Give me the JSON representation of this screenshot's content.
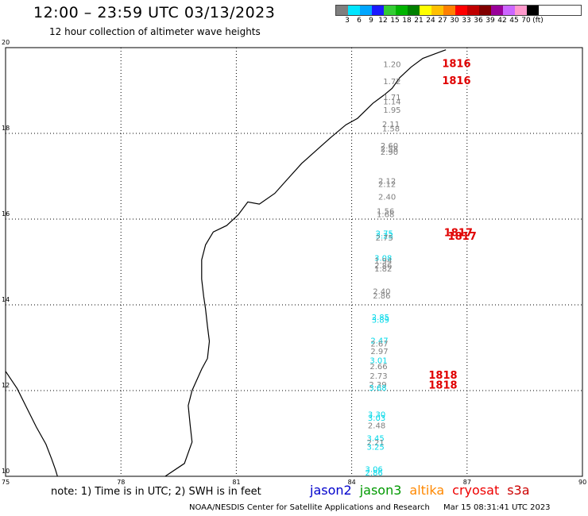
{
  "header": {
    "title": "12:00 – 23:59 UTC 03/13/2023",
    "subtitle": "12 hour collection of altimeter wave heights"
  },
  "legend": {
    "colors": [
      "#7f7f7f",
      "#00e5ff",
      "#00a6ff",
      "#1a1aff",
      "#33cc33",
      "#00b300",
      "#007f00",
      "#ffff00",
      "#ffc000",
      "#ff8000",
      "#ff0000",
      "#c00000",
      "#800000",
      "#990099",
      "#cc66ff",
      "#ff99cc",
      "#000000"
    ],
    "labels": [
      "3",
      "6",
      "9",
      "12",
      "15",
      "18",
      "21",
      "24",
      "27",
      "30",
      "33",
      "36",
      "39",
      "42",
      "45",
      "70",
      "(ft)"
    ]
  },
  "axes": {
    "x_ticks": [
      "75",
      "78",
      "81",
      "84",
      "87",
      "90"
    ],
    "y_ticks": [
      "20",
      "18",
      "16",
      "14",
      "12",
      "10"
    ]
  },
  "chart_data": {
    "type": "scatter",
    "x_label": "",
    "y_label": "",
    "xlim": [
      75,
      90
    ],
    "ylim": [
      10,
      20
    ],
    "series_colors": {
      "gray": "#7f7f7f",
      "cyan": "#00d8e8"
    },
    "wave_heights": [
      {
        "lon": 85.05,
        "lat": 19.55,
        "value": "1.20",
        "color": "gray"
      },
      {
        "lon": 85.05,
        "lat": 19.15,
        "value": "1.72",
        "color": "gray"
      },
      {
        "lon": 85.05,
        "lat": 18.78,
        "value": "1.71",
        "color": "gray"
      },
      {
        "lon": 85.05,
        "lat": 18.68,
        "value": "1.14",
        "color": "gray"
      },
      {
        "lon": 85.05,
        "lat": 18.48,
        "value": "1.95",
        "color": "gray"
      },
      {
        "lon": 85.02,
        "lat": 18.15,
        "value": "2.11",
        "color": "gray"
      },
      {
        "lon": 85.02,
        "lat": 18.05,
        "value": "1.58",
        "color": "gray"
      },
      {
        "lon": 84.98,
        "lat": 17.65,
        "value": "2.60",
        "color": "gray"
      },
      {
        "lon": 84.98,
        "lat": 17.57,
        "value": "2.58",
        "color": "gray"
      },
      {
        "lon": 84.98,
        "lat": 17.5,
        "value": "2.90",
        "color": "gray"
      },
      {
        "lon": 84.92,
        "lat": 16.82,
        "value": "2.12",
        "color": "gray"
      },
      {
        "lon": 84.92,
        "lat": 16.75,
        "value": "2.12",
        "color": "gray"
      },
      {
        "lon": 84.92,
        "lat": 16.45,
        "value": "2.40",
        "color": "gray"
      },
      {
        "lon": 84.88,
        "lat": 16.12,
        "value": "1.56",
        "color": "gray"
      },
      {
        "lon": 84.88,
        "lat": 16.05,
        "value": "1.68",
        "color": "gray"
      },
      {
        "lon": 84.85,
        "lat": 15.6,
        "value": "2.75",
        "color": "cyan"
      },
      {
        "lon": 84.85,
        "lat": 15.55,
        "value": "3.23",
        "color": "cyan"
      },
      {
        "lon": 84.85,
        "lat": 15.5,
        "value": "2.75",
        "color": "gray"
      },
      {
        "lon": 84.82,
        "lat": 15.03,
        "value": "3.08",
        "color": "cyan"
      },
      {
        "lon": 84.82,
        "lat": 14.96,
        "value": "1.94",
        "color": "gray"
      },
      {
        "lon": 84.82,
        "lat": 14.85,
        "value": "2.86",
        "color": "gray"
      },
      {
        "lon": 84.82,
        "lat": 14.78,
        "value": "1.82",
        "color": "gray"
      },
      {
        "lon": 84.78,
        "lat": 14.25,
        "value": "2.40",
        "color": "gray"
      },
      {
        "lon": 84.78,
        "lat": 14.15,
        "value": "2.86",
        "color": "gray"
      },
      {
        "lon": 84.75,
        "lat": 13.65,
        "value": "2.85",
        "color": "cyan"
      },
      {
        "lon": 84.75,
        "lat": 13.58,
        "value": "3.89",
        "color": "cyan"
      },
      {
        "lon": 84.72,
        "lat": 13.1,
        "value": "2.47",
        "color": "cyan"
      },
      {
        "lon": 84.72,
        "lat": 13.03,
        "value": "2.67",
        "color": "gray"
      },
      {
        "lon": 84.72,
        "lat": 12.85,
        "value": "2.97",
        "color": "gray"
      },
      {
        "lon": 84.7,
        "lat": 12.64,
        "value": "3.01",
        "color": "cyan"
      },
      {
        "lon": 84.7,
        "lat": 12.5,
        "value": "2.66",
        "color": "gray"
      },
      {
        "lon": 84.7,
        "lat": 12.28,
        "value": "2.73",
        "color": "gray"
      },
      {
        "lon": 84.68,
        "lat": 12.07,
        "value": "2.39",
        "color": "gray"
      },
      {
        "lon": 84.68,
        "lat": 12.0,
        "value": "3.68",
        "color": "cyan"
      },
      {
        "lon": 84.65,
        "lat": 11.38,
        "value": "3.30",
        "color": "cyan"
      },
      {
        "lon": 84.65,
        "lat": 11.3,
        "value": "3.03",
        "color": "cyan"
      },
      {
        "lon": 84.65,
        "lat": 11.12,
        "value": "2.48",
        "color": "gray"
      },
      {
        "lon": 84.62,
        "lat": 10.82,
        "value": "3.45",
        "color": "cyan"
      },
      {
        "lon": 84.62,
        "lat": 10.72,
        "value": "2.21",
        "color": "gray"
      },
      {
        "lon": 84.62,
        "lat": 10.62,
        "value": "3.25",
        "color": "cyan"
      },
      {
        "lon": 84.58,
        "lat": 10.1,
        "value": "3.06",
        "color": "cyan"
      },
      {
        "lon": 84.58,
        "lat": 10.02,
        "value": "2.86",
        "color": "cyan"
      }
    ],
    "pass_times": [
      {
        "lon": 86.35,
        "lat": 19.55,
        "value": "1816"
      },
      {
        "lon": 86.35,
        "lat": 19.15,
        "value": "1816"
      },
      {
        "lon": 86.4,
        "lat": 15.6,
        "value": "1817"
      },
      {
        "lon": 86.5,
        "lat": 15.52,
        "value": "1817"
      },
      {
        "lon": 86.0,
        "lat": 12.28,
        "value": "1818"
      },
      {
        "lon": 86.0,
        "lat": 12.05,
        "value": "1818"
      }
    ],
    "coastline_lonlat": [
      [
        86.45,
        19.95
      ],
      [
        86.15,
        19.85
      ],
      [
        85.85,
        19.75
      ],
      [
        85.55,
        19.55
      ],
      [
        85.25,
        19.3
      ],
      [
        85.05,
        19.05
      ],
      [
        84.85,
        18.9
      ],
      [
        84.55,
        18.7
      ],
      [
        84.15,
        18.35
      ],
      [
        83.85,
        18.2
      ],
      [
        83.45,
        17.9
      ],
      [
        83.2,
        17.7
      ],
      [
        82.7,
        17.3
      ],
      [
        82.3,
        16.9
      ],
      [
        82.0,
        16.6
      ],
      [
        81.6,
        16.35
      ],
      [
        81.3,
        16.4
      ],
      [
        81.05,
        16.1
      ],
      [
        80.75,
        15.85
      ],
      [
        80.4,
        15.7
      ],
      [
        80.2,
        15.4
      ],
      [
        80.1,
        15.05
      ],
      [
        80.1,
        14.6
      ],
      [
        80.15,
        14.2
      ],
      [
        80.2,
        13.9
      ],
      [
        80.25,
        13.5
      ],
      [
        80.3,
        13.15
      ],
      [
        80.25,
        12.75
      ],
      [
        80.1,
        12.5
      ],
      [
        79.85,
        12.0
      ],
      [
        79.75,
        11.65
      ],
      [
        79.8,
        11.2
      ],
      [
        79.85,
        10.8
      ],
      [
        79.65,
        10.3
      ],
      [
        79.15,
        10.0
      ]
    ],
    "west_coast_lonlat": [
      [
        75.0,
        12.45
      ],
      [
        75.3,
        12.05
      ],
      [
        75.55,
        11.6
      ],
      [
        75.8,
        11.15
      ],
      [
        76.05,
        10.75
      ],
      [
        76.2,
        10.4
      ],
      [
        76.3,
        10.15
      ],
      [
        76.35,
        10.0
      ]
    ]
  },
  "footer": {
    "note": "note: 1) Time is in UTC; 2) SWH is in feet",
    "satellites": [
      {
        "name": "jason2",
        "color": "#0000cc"
      },
      {
        "name": "jason3",
        "color": "#009900"
      },
      {
        "name": "altika",
        "color": "#ff8800"
      },
      {
        "name": "cryosat",
        "color": "#ee0000"
      },
      {
        "name": "s3a",
        "color": "#cc0000"
      }
    ],
    "credit": "NOAA/NESDIS Center for Satellite Applications and Research",
    "timestamp": "Mar 15 08:31:41 UTC 2023"
  }
}
